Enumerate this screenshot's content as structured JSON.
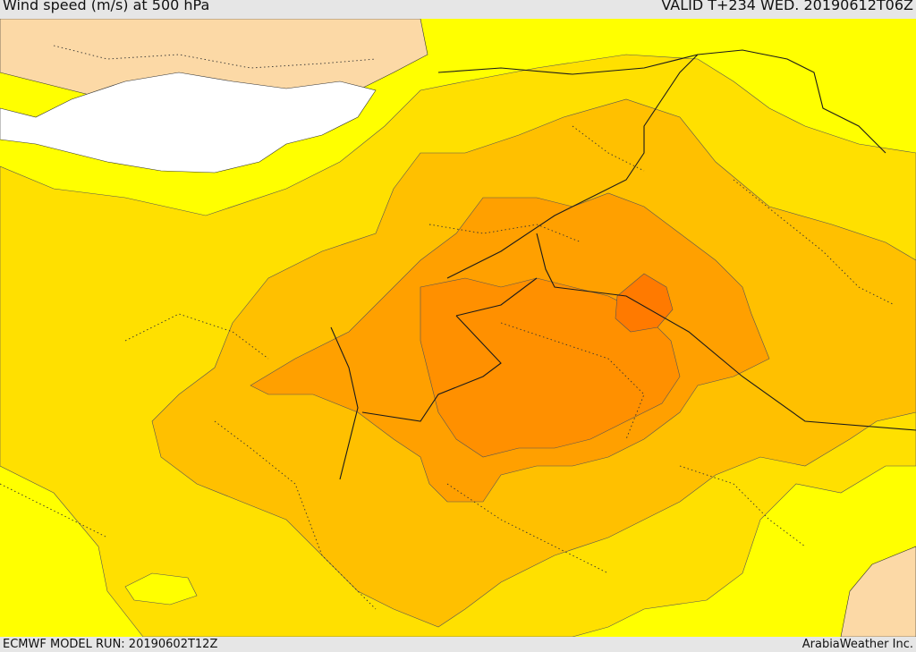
{
  "header": {
    "title": "Wind speed (m/s) at 500 hPa",
    "valid": "VALID T+234 WED. 20190612T06Z"
  },
  "footer": {
    "model_run": "ECMWF MODEL RUN: 20190602T12Z",
    "credit": "ArabiaWeather Inc."
  },
  "colors": {
    "land": "#fcd9a6",
    "sea": "#ffffff",
    "band1": "#ffff00",
    "band2": "#ffe000",
    "band3": "#ffc000",
    "band4": "#ffa000",
    "band5": "#ff9000",
    "band6": "#ff7a00",
    "border": "#1a1a1a"
  }
}
